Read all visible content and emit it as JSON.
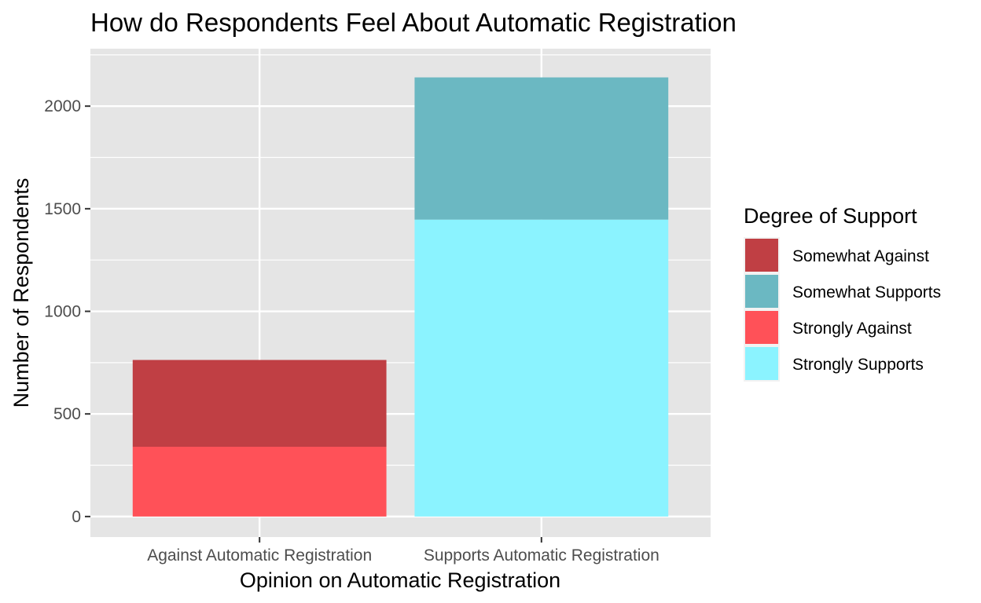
{
  "chart_data": {
    "type": "bar",
    "stacked": true,
    "title": "How do Respondents Feel About Automatic Registration",
    "xlabel": "Opinion on Automatic Registration",
    "ylabel": "Number of Respondents",
    "categories": [
      "Against Automatic Registration",
      "Supports Automatic Registration"
    ],
    "ylim": [
      -100,
      2280
    ],
    "yticks": [
      0,
      500,
      1000,
      1500,
      2000
    ],
    "grid": true,
    "background": "#e5e5e5",
    "legend_title": "Degree of Support",
    "legend_position": "right",
    "series": [
      {
        "name": "Strongly Against",
        "color": "#ff5158",
        "values": [
          340,
          0
        ]
      },
      {
        "name": "Somewhat Against",
        "color": "#c03f44",
        "values": [
          423,
          0
        ]
      },
      {
        "name": "Strongly Supports",
        "color": "#8bf3ff",
        "values": [
          0,
          1447
        ]
      },
      {
        "name": "Somewhat Supports",
        "color": "#6bb8c2",
        "values": [
          0,
          693
        ]
      }
    ],
    "legend_order": [
      "Somewhat Against",
      "Somewhat Supports",
      "Strongly Against",
      "Strongly Supports"
    ]
  }
}
